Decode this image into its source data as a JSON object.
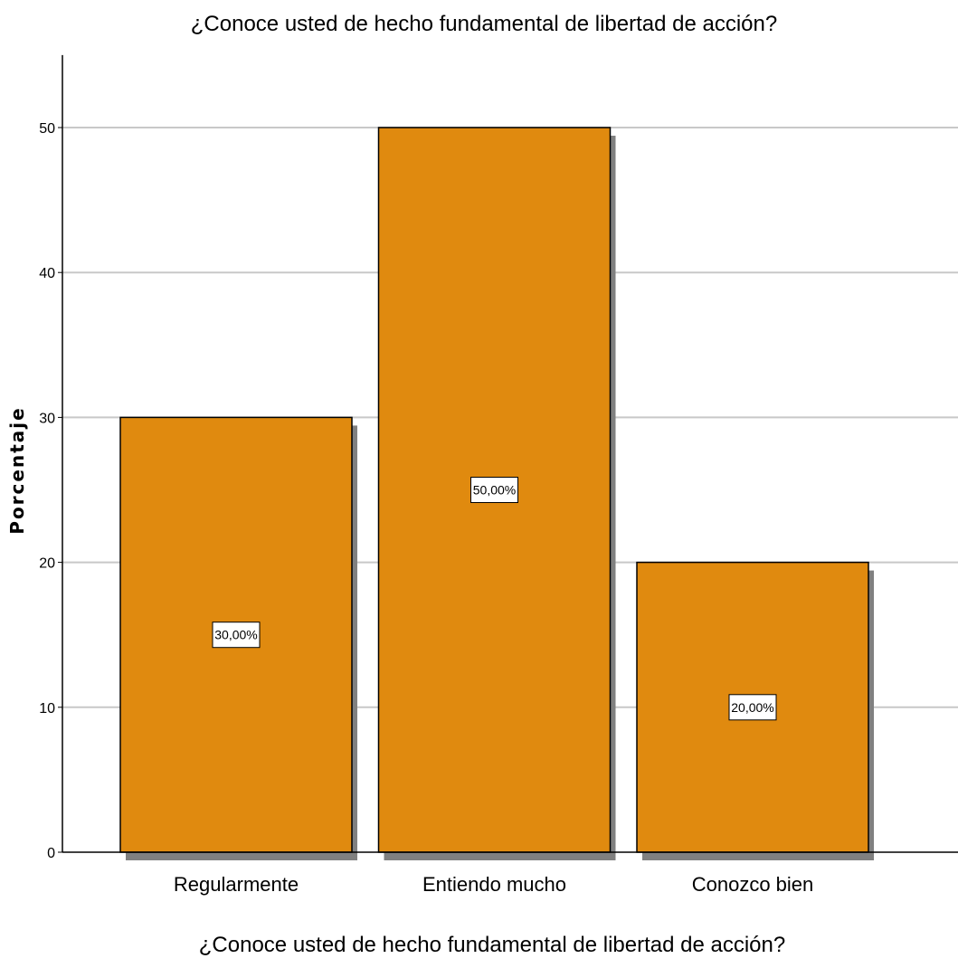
{
  "chart_data": {
    "type": "bar",
    "title": "¿Conoce usted de hecho fundamental de libertad de acción?",
    "xlabel": "¿Conoce usted de hecho fundamental de libertad de acción?",
    "ylabel": "Porcentaje",
    "categories": [
      "Regularmente",
      "Entiendo mucho",
      "Conozco bien"
    ],
    "values": [
      30,
      50,
      20
    ],
    "data_labels": [
      "30,00%",
      "50,00%",
      "20,00%"
    ],
    "y_ticks": [
      0,
      10,
      20,
      30,
      40,
      50
    ],
    "y_tick_labels": [
      "0",
      "10",
      "20",
      "30",
      "40",
      "50"
    ],
    "ylim": [
      0,
      55
    ],
    "grid": true,
    "legend": "none",
    "colors": {
      "bar": "#E08A0F",
      "bar_shadow": "#808080",
      "grid": "#C8C8C8",
      "axis": "#000000"
    }
  }
}
